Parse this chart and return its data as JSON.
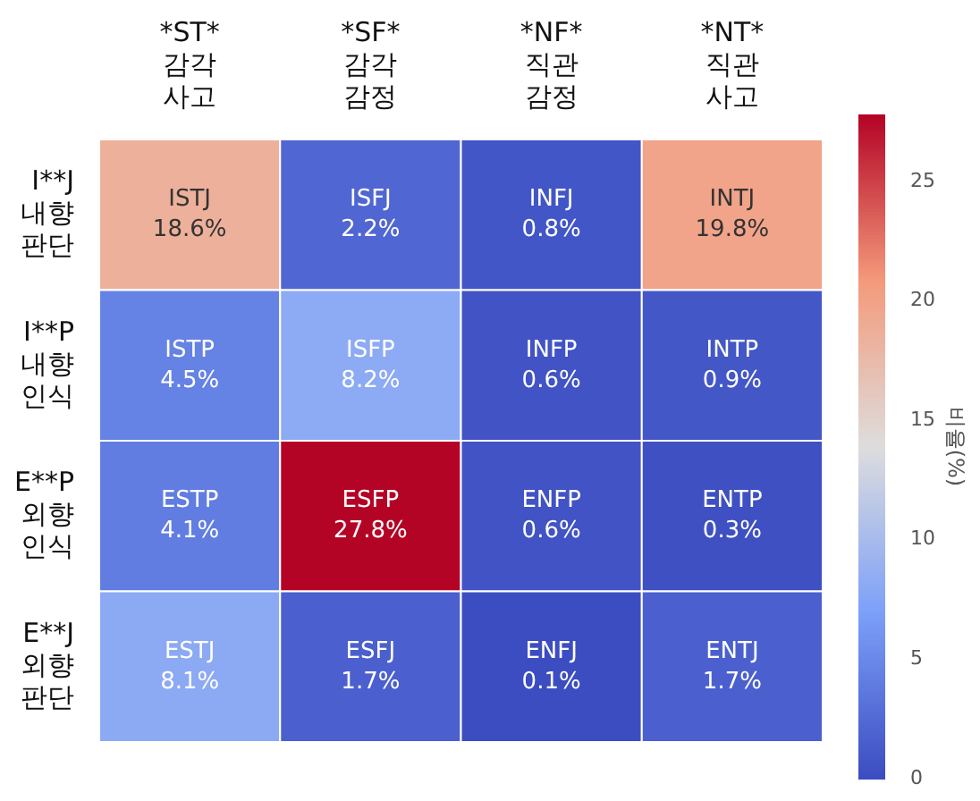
{
  "chart_data": {
    "type": "heatmap",
    "categories": [
      "*ST*\n감각\n사고",
      "*SF*\n감각\n감정",
      "*NF*\n직관\n감정",
      "*NT*\n직관\n사고"
    ],
    "y_categories": [
      "I**J\n내향\n판단",
      "I**P\n내향\n인식",
      "E**P\n외향\n인식",
      "E**J\n외향\n판단"
    ],
    "cells": [
      [
        18.6,
        2.2,
        0.8,
        19.8
      ],
      [
        4.5,
        8.2,
        0.6,
        0.9
      ],
      [
        4.1,
        27.8,
        0.6,
        0.3
      ],
      [
        8.1,
        1.7,
        0.1,
        1.7
      ]
    ],
    "cell_labels": [
      [
        "ISTJ\n18.6%",
        "ISFJ\n2.2%",
        "INFJ\n0.8%",
        "INTJ\n19.8%"
      ],
      [
        "ISTP\n4.5%",
        "ISFP\n8.2%",
        "INFP\n0.6%",
        "INTP\n0.9%"
      ],
      [
        "ESTP\n4.1%",
        "ESFP\n27.8%",
        "ENFP\n0.6%",
        "ENTP\n0.3%"
      ],
      [
        "ESTJ\n8.1%",
        "ESFJ\n1.7%",
        "ENFJ\n0.1%",
        "ENTJ\n1.7%"
      ]
    ],
    "clabel": "비율(%)",
    "clim": [
      0,
      27.8
    ],
    "cticks": [
      0,
      5,
      10,
      15,
      20,
      25
    ]
  }
}
